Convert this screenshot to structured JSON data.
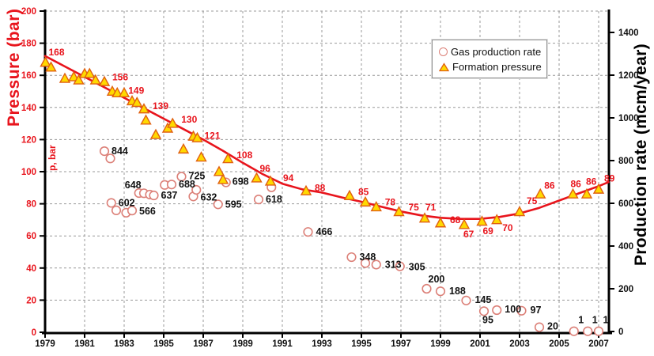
{
  "titles": {
    "left_axis": "Pressure (bar)",
    "left_axis_inner": "p, bar",
    "right_axis": "Production rate (mcm/year)"
  },
  "legend": {
    "items": [
      {
        "label": "Gas production rate",
        "marker": "circle-marker-icon"
      },
      {
        "label": "Formation pressure",
        "marker": "triangle-marker-icon"
      }
    ]
  },
  "colors": {
    "red": "#e8141c",
    "triangle_fill": "#ffd900",
    "triangle_stroke": "#e06010",
    "circle_stroke": "#dc8078",
    "grid": "#999999",
    "axis": "#000000",
    "text": "#111111",
    "background": "#ffffff"
  },
  "chart_data": {
    "type": "scatter",
    "title": "",
    "grid": true,
    "legend_position": "top-right-inside",
    "x_axis": {
      "range": [
        1979,
        2007.5
      ],
      "ticks": [
        1979,
        1981,
        1983,
        1985,
        1987,
        1989,
        1991,
        1993,
        1995,
        1997,
        1999,
        2001,
        2003,
        2005,
        2007
      ]
    },
    "left_y_axis": {
      "label": "Pressure (bar)",
      "units": "bar",
      "range": [
        0,
        200
      ],
      "ticks": [
        0,
        20,
        40,
        60,
        80,
        100,
        120,
        140,
        160,
        180,
        200
      ]
    },
    "right_y_axis": {
      "label": "Production rate (mcm/year)",
      "units": "mcm/year",
      "range": [
        0,
        1400
      ],
      "ticks": [
        0,
        200,
        400,
        600,
        800,
        1000,
        1200,
        1400
      ]
    },
    "series": [
      {
        "name": "Formation pressure",
        "marker": "triangle",
        "axis": "left",
        "points": [
          {
            "x": 1979.02,
            "y": 168,
            "label": "168",
            "dx": 4,
            "dy": -9
          },
          {
            "x": 1979.3,
            "y": 165
          },
          {
            "x": 1980.0,
            "y": 158
          },
          {
            "x": 1980.45,
            "y": 159
          },
          {
            "x": 1980.7,
            "y": 157
          },
          {
            "x": 1981.0,
            "y": 161
          },
          {
            "x": 1981.25,
            "y": 161
          },
          {
            "x": 1981.55,
            "y": 157
          },
          {
            "x": 1982.0,
            "y": 156,
            "label": "156",
            "dx": 10,
            "dy": -2
          },
          {
            "x": 1982.4,
            "y": 150
          },
          {
            "x": 1982.65,
            "y": 149,
            "label": "149",
            "dx": 14,
            "dy": 1
          },
          {
            "x": 1983.0,
            "y": 149
          },
          {
            "x": 1983.4,
            "y": 144
          },
          {
            "x": 1983.65,
            "y": 143
          },
          {
            "x": 1984.0,
            "y": 139,
            "label": "139",
            "dx": 11,
            "dy": 0
          },
          {
            "x": 1984.1,
            "y": 132
          },
          {
            "x": 1984.6,
            "y": 123
          },
          {
            "x": 1985.2,
            "y": 127
          },
          {
            "x": 1985.45,
            "y": 130,
            "label": "130",
            "dx": 11,
            "dy": -1
          },
          {
            "x": 1986.0,
            "y": 114
          },
          {
            "x": 1986.5,
            "y": 122
          },
          {
            "x": 1986.7,
            "y": 121,
            "label": "121",
            "dx": 9,
            "dy": 1
          },
          {
            "x": 1986.9,
            "y": 109
          },
          {
            "x": 1987.8,
            "y": 100
          },
          {
            "x": 1988.0,
            "y": 95
          },
          {
            "x": 1988.25,
            "y": 108,
            "label": "108",
            "dx": 11,
            "dy": -1
          },
          {
            "x": 1989.7,
            "y": 96,
            "label": "96",
            "dx": 4,
            "dy": -8
          },
          {
            "x": 1990.4,
            "y": 94,
            "label": "94",
            "dx": 16,
            "dy": 0
          },
          {
            "x": 1992.2,
            "y": 88,
            "label": "88",
            "dx": 11,
            "dy": 0
          },
          {
            "x": 1994.4,
            "y": 85,
            "label": "85",
            "dx": 11,
            "dy": -1
          },
          {
            "x": 1995.2,
            "y": 81
          },
          {
            "x": 1995.75,
            "y": 78,
            "label": "78",
            "dx": 11,
            "dy": -2
          },
          {
            "x": 1996.9,
            "y": 75,
            "label": "75",
            "dx": 12,
            "dy": -2
          },
          {
            "x": 1998.2,
            "y": 71,
            "label": "71",
            "dx": 1,
            "dy": -10
          },
          {
            "x": 1999.0,
            "y": 68,
            "label": "68",
            "dx": 12,
            "dy": 0
          },
          {
            "x": 2000.2,
            "y": 67,
            "label": "67",
            "dx": -1,
            "dy": 16
          },
          {
            "x": 2001.1,
            "y": 69,
            "label": "69",
            "dx": 1,
            "dy": 16
          },
          {
            "x": 2001.85,
            "y": 70,
            "label": "70",
            "dx": 7,
            "dy": 14
          },
          {
            "x": 2003.0,
            "y": 75,
            "label": "75",
            "dx": 0,
            "dy": -10
          },
          {
            "x": 2004.05,
            "y": 86,
            "label": "86",
            "dx": 5,
            "dy": -7
          },
          {
            "x": 2005.7,
            "y": 86,
            "label": "86",
            "dx": -3,
            "dy": -9
          },
          {
            "x": 2006.4,
            "y": 86,
            "label": "86",
            "dx": -1,
            "dy": -12
          },
          {
            "x": 2007.0,
            "y": 89,
            "label": "89",
            "dx": 7,
            "dy": -10
          }
        ]
      },
      {
        "name": "Gas production rate",
        "marker": "circle",
        "axis": "right",
        "points": [
          {
            "x": 1982.0,
            "y": 844,
            "label": "844",
            "dx": 9,
            "dy": 4
          },
          {
            "x": 1982.3,
            "y": 810
          },
          {
            "x": 1982.35,
            "y": 602,
            "label": "602",
            "dx": 9,
            "dy": 4
          },
          {
            "x": 1982.6,
            "y": 567
          },
          {
            "x": 1983.1,
            "y": 556
          },
          {
            "x": 1983.4,
            "y": 566,
            "label": "566",
            "dx": 9,
            "dy": 5
          },
          {
            "x": 1983.75,
            "y": 648,
            "label": "648",
            "dx": -18,
            "dy": -6,
            "ta": "end-left"
          },
          {
            "x": 1984.0,
            "y": 647
          },
          {
            "x": 1984.3,
            "y": 641
          },
          {
            "x": 1984.5,
            "y": 637,
            "label": "637",
            "dx": 9,
            "dy": 4
          },
          {
            "x": 1985.05,
            "y": 686
          },
          {
            "x": 1985.4,
            "y": 688,
            "label": "688",
            "dx": 9,
            "dy": 4
          },
          {
            "x": 1985.9,
            "y": 725,
            "label": "725",
            "dx": 9,
            "dy": 3
          },
          {
            "x": 1986.5,
            "y": 632,
            "label": "632",
            "dx": 9,
            "dy": 5
          },
          {
            "x": 1986.65,
            "y": 663
          },
          {
            "x": 1987.75,
            "y": 595,
            "label": "595",
            "dx": 9,
            "dy": 4
          },
          {
            "x": 1988.15,
            "y": 698,
            "label": "698",
            "dx": 8,
            "dy": 3
          },
          {
            "x": 1989.8,
            "y": 618,
            "label": "618",
            "dx": 9,
            "dy": 4
          },
          {
            "x": 1990.45,
            "y": 675
          },
          {
            "x": 1992.3,
            "y": 466,
            "label": "466",
            "dx": 10,
            "dy": 4
          },
          {
            "x": 1994.5,
            "y": 348,
            "label": "348",
            "dx": 10,
            "dy": 4
          },
          {
            "x": 1995.2,
            "y": 320
          },
          {
            "x": 1995.75,
            "y": 313,
            "label": "313",
            "dx": 11,
            "dy": 4
          },
          {
            "x": 1996.95,
            "y": 305,
            "label": "305",
            "dx": 11,
            "dy": 5
          },
          {
            "x": 1998.3,
            "y": 200,
            "label": "200",
            "dx": 2,
            "dy": -8
          },
          {
            "x": 1999.0,
            "y": 188,
            "label": "188",
            "dx": 11,
            "dy": 4
          },
          {
            "x": 2000.3,
            "y": 145,
            "label": "145",
            "dx": 11,
            "dy": 3
          },
          {
            "x": 2001.2,
            "y": 95,
            "label": "95",
            "dx": -2,
            "dy": 15
          },
          {
            "x": 2001.85,
            "y": 100,
            "label": "100",
            "dx": 10,
            "dy": 3
          },
          {
            "x": 2003.1,
            "y": 97,
            "label": "97",
            "dx": 11,
            "dy": 3
          },
          {
            "x": 2004.0,
            "y": 20,
            "label": "20",
            "dx": 10,
            "dy": 3
          },
          {
            "x": 2005.75,
            "y": 1,
            "label": "1",
            "dx": 0,
            "dy": -10,
            "ta": "middle"
          },
          {
            "x": 2006.45,
            "y": 1,
            "label": "1",
            "dx": 0,
            "dy": -10,
            "ta": "middle"
          },
          {
            "x": 2007.0,
            "y": 1,
            "label": "1",
            "dx": 0,
            "dy": -10,
            "ta": "middle"
          }
        ]
      },
      {
        "name": "Formation pressure trend",
        "type": "line",
        "axis": "left",
        "points": [
          [
            1979,
            172
          ],
          [
            1980,
            165.5
          ],
          [
            1981,
            159
          ],
          [
            1982,
            152.5
          ],
          [
            1983,
            146
          ],
          [
            1984,
            139.5
          ],
          [
            1985,
            133
          ],
          [
            1986,
            126.5
          ],
          [
            1987,
            120
          ],
          [
            1988,
            113
          ],
          [
            1989,
            105.5
          ],
          [
            1990,
            98.5
          ],
          [
            1991,
            92.5
          ],
          [
            1992,
            89
          ],
          [
            1993,
            87
          ],
          [
            1994,
            84
          ],
          [
            1995,
            81.3
          ],
          [
            1996,
            78.2
          ],
          [
            1997,
            75.2
          ],
          [
            1998,
            72.8
          ],
          [
            1999,
            71.3
          ],
          [
            2000,
            70.6
          ],
          [
            2001,
            70.6
          ],
          [
            2002,
            71.8
          ],
          [
            2003,
            74
          ],
          [
            2004,
            77.5
          ],
          [
            2005,
            82
          ],
          [
            2006,
            86.5
          ],
          [
            2007,
            91
          ],
          [
            2007.5,
            93.5
          ]
        ]
      }
    ]
  }
}
